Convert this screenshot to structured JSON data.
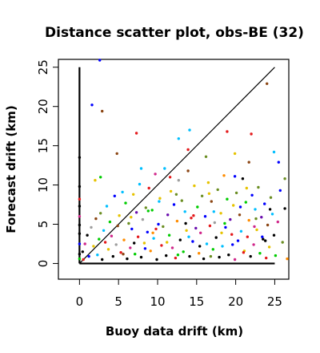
{
  "chart_data": {
    "type": "scatter",
    "title": "Distance scatter plot, obs-BE (32)",
    "xlabel": "Buoy data drift (km)",
    "ylabel": "Forecast drift (km)",
    "xlim": [
      -2.7,
      26.8
    ],
    "ylim": [
      -2.0,
      26.0
    ],
    "x_ticks": [
      0,
      5,
      10,
      15,
      20,
      25
    ],
    "y_ticks": [
      0,
      5,
      10,
      15,
      20,
      25
    ],
    "x_tick_labels": [
      "0",
      "5",
      "10",
      "15",
      "20",
      "25"
    ],
    "y_tick_labels": [
      "0",
      "5",
      "10",
      "15",
      "20",
      "25"
    ],
    "grid": false,
    "legend": "none",
    "reference_lines": [
      {
        "kind": "identity",
        "x": [
          0,
          25
        ],
        "y": [
          0,
          25
        ]
      },
      {
        "kind": "vertical-axis",
        "x": [
          0,
          0
        ],
        "y": [
          0,
          25
        ]
      },
      {
        "kind": "horizontal-axis",
        "x": [
          0,
          25
        ],
        "y": [
          0,
          0
        ]
      }
    ],
    "palette": [
      "#000000",
      "#e41a1c",
      "#00cc00",
      "#0000ff",
      "#00bfff",
      "#d0268a",
      "#e6c300",
      "#9e9e9e",
      "#8b4513",
      "#6b8e23",
      "#ff8c00",
      "#6a0dad"
    ],
    "points": [
      [
        1.6,
        20.2,
        3
      ],
      [
        2.9,
        19.4,
        8
      ],
      [
        7.3,
        16.6,
        1
      ],
      [
        12.7,
        15.9,
        4
      ],
      [
        14.1,
        17.0,
        4
      ],
      [
        13.9,
        14.5,
        1
      ],
      [
        7.9,
        12.1,
        4
      ],
      [
        2.0,
        10.6,
        6
      ],
      [
        2.7,
        11.0,
        2
      ],
      [
        4.8,
        14.0,
        8
      ],
      [
        16.2,
        13.6,
        9
      ],
      [
        18.9,
        16.8,
        1
      ],
      [
        19.9,
        11.1,
        3
      ],
      [
        19.9,
        14.0,
        6
      ],
      [
        22.0,
        16.5,
        1
      ],
      [
        24.0,
        22.9,
        8
      ],
      [
        24.9,
        14.2,
        4
      ],
      [
        25.5,
        12.9,
        3
      ],
      [
        26.3,
        10.8,
        9
      ],
      [
        21.7,
        12.9,
        8
      ],
      [
        2.6,
        25.9,
        3
      ],
      [
        0.0,
        13.5,
        0
      ],
      [
        0.0,
        9.8,
        0
      ],
      [
        0.0,
        8.2,
        1
      ],
      [
        0.0,
        7.3,
        0
      ],
      [
        0.0,
        6.0,
        5
      ],
      [
        0.0,
        4.9,
        0
      ],
      [
        0.0,
        3.8,
        0
      ],
      [
        0.0,
        2.5,
        3
      ],
      [
        0.0,
        1.2,
        0
      ],
      [
        0.0,
        0.6,
        2
      ],
      [
        0.4,
        1.5,
        0
      ],
      [
        0.5,
        0.5,
        1
      ],
      [
        0.7,
        2.5,
        5
      ],
      [
        1.0,
        3.6,
        0
      ],
      [
        1.2,
        0.9,
        3
      ],
      [
        1.5,
        4.6,
        7
      ],
      [
        1.8,
        2.2,
        6
      ],
      [
        2.1,
        5.7,
        8
      ],
      [
        2.3,
        1.1,
        4
      ],
      [
        2.5,
        3.1,
        2
      ],
      [
        2.7,
        6.4,
        9
      ],
      [
        2.9,
        0.5,
        0
      ],
      [
        3.1,
        4.2,
        4
      ],
      [
        3.3,
        2.7,
        1
      ],
      [
        3.5,
        7.3,
        4
      ],
      [
        3.7,
        1.8,
        6
      ],
      [
        3.9,
        5.3,
        2
      ],
      [
        4.1,
        3.5,
        5
      ],
      [
        4.3,
        0.9,
        0
      ],
      [
        4.5,
        8.6,
        3
      ],
      [
        4.7,
        2.4,
        7
      ],
      [
        4.9,
        4.8,
        8
      ],
      [
        5.1,
        6.1,
        6
      ],
      [
        5.3,
        1.4,
        1
      ],
      [
        5.5,
        9.1,
        4
      ],
      [
        5.7,
        3.0,
        10
      ],
      [
        5.9,
        7.7,
        2
      ],
      [
        6.1,
        0.6,
        0
      ],
      [
        6.3,
        5.1,
        9
      ],
      [
        6.5,
        2.0,
        5
      ],
      [
        6.7,
        4.4,
        3
      ],
      [
        6.9,
        8.8,
        6
      ],
      [
        7.1,
        1.2,
        2
      ],
      [
        7.3,
        6.5,
        11
      ],
      [
        7.5,
        3.4,
        1
      ],
      [
        7.7,
        10.1,
        4
      ],
      [
        7.9,
        0.8,
        0
      ],
      [
        8.1,
        5.6,
        7
      ],
      [
        8.3,
        2.6,
        6
      ],
      [
        8.5,
        7.1,
        9
      ],
      [
        8.7,
        4.0,
        3
      ],
      [
        8.9,
        9.6,
        1
      ],
      [
        9.1,
        1.6,
        10
      ],
      [
        9.3,
        6.8,
        2
      ],
      [
        9.5,
        3.2,
        4
      ],
      [
        9.7,
        11.4,
        5
      ],
      [
        9.9,
        0.5,
        0
      ],
      [
        10.1,
        5.0,
        3
      ],
      [
        10.3,
        8.3,
        6
      ],
      [
        10.5,
        2.3,
        1
      ],
      [
        10.7,
        4.7,
        9
      ],
      [
        10.9,
        12.1,
        4
      ],
      [
        11.1,
        1.0,
        0
      ],
      [
        11.3,
        6.2,
        11
      ],
      [
        11.5,
        3.6,
        2
      ],
      [
        11.7,
        9.2,
        6
      ],
      [
        11.9,
        2.0,
        5
      ],
      [
        12.1,
        7.5,
        3
      ],
      [
        12.3,
        0.7,
        1
      ],
      [
        12.5,
        5.4,
        10
      ],
      [
        12.7,
        10.6,
        7
      ],
      [
        12.9,
        3.0,
        0
      ],
      [
        13.1,
        8.0,
        9
      ],
      [
        13.3,
        1.5,
        2
      ],
      [
        13.5,
        6.6,
        4
      ],
      [
        13.7,
        4.2,
        6
      ],
      [
        13.9,
        11.8,
        8
      ],
      [
        14.1,
        0.9,
        0
      ],
      [
        14.3,
        5.8,
        1
      ],
      [
        14.5,
        2.8,
        3
      ],
      [
        14.7,
        9.9,
        6
      ],
      [
        14.9,
        4.5,
        11
      ],
      [
        15.1,
        7.2,
        2
      ],
      [
        15.3,
        1.3,
        10
      ],
      [
        15.5,
        3.9,
        5
      ],
      [
        15.7,
        8.6,
        9
      ],
      [
        15.9,
        0.6,
        0
      ],
      [
        16.1,
        6.0,
        3
      ],
      [
        16.3,
        2.5,
        4
      ],
      [
        16.5,
        10.3,
        6
      ],
      [
        16.7,
        4.8,
        1
      ],
      [
        16.9,
        7.9,
        8
      ],
      [
        17.1,
        1.8,
        2
      ],
      [
        17.3,
        5.2,
        7
      ],
      [
        17.5,
        3.3,
        0
      ],
      [
        17.7,
        9.4,
        9
      ],
      [
        17.9,
        0.8,
        0
      ],
      [
        18.1,
        6.4,
        6
      ],
      [
        18.3,
        2.2,
        4
      ],
      [
        18.5,
        11.2,
        10
      ],
      [
        18.7,
        4.6,
        3
      ],
      [
        18.9,
        8.2,
        2
      ],
      [
        19.1,
        1.1,
        0
      ],
      [
        19.3,
        5.6,
        11
      ],
      [
        19.5,
        3.7,
        1
      ],
      [
        19.7,
        7.4,
        6
      ],
      [
        19.9,
        0.5,
        5
      ],
      [
        20.1,
        9.0,
        9
      ],
      [
        20.3,
        2.9,
        3
      ],
      [
        20.5,
        6.2,
        8
      ],
      [
        20.7,
        4.1,
        4
      ],
      [
        20.9,
        10.8,
        0
      ],
      [
        21.1,
        1.6,
        6
      ],
      [
        21.3,
        7.8,
        2
      ],
      [
        21.5,
        3.4,
        1
      ],
      [
        21.7,
        5.5,
        10
      ],
      [
        21.9,
        0.9,
        0
      ],
      [
        22.1,
        8.7,
        3
      ],
      [
        22.3,
        2.4,
        5
      ],
      [
        22.5,
        6.9,
        4
      ],
      [
        22.7,
        4.3,
        6
      ],
      [
        22.9,
        9.7,
        9
      ],
      [
        23.1,
        1.3,
        2
      ],
      [
        23.3,
        5.9,
        11
      ],
      [
        23.5,
        3.1,
        0
      ],
      [
        23.7,
        7.6,
        3
      ],
      [
        23.9,
        0.7,
        1
      ],
      [
        24.1,
        4.9,
        8
      ],
      [
        24.3,
        2.1,
        6
      ],
      [
        24.5,
        8.4,
        9
      ],
      [
        24.7,
        6.3,
        4
      ],
      [
        24.9,
        3.6,
        0
      ],
      [
        25.1,
        1.0,
        2
      ],
      [
        25.4,
        5.3,
        5
      ],
      [
        25.7,
        9.3,
        3
      ],
      [
        26.0,
        2.7,
        9
      ],
      [
        26.3,
        7.0,
        0
      ],
      [
        26.6,
        0.6,
        10
      ],
      [
        5.6,
        1.2,
        8
      ],
      [
        7.0,
        2.6,
        0
      ],
      [
        8.4,
        1.9,
        3
      ],
      [
        9.8,
        4.4,
        1
      ],
      [
        11.2,
        2.7,
        6
      ],
      [
        12.6,
        1.1,
        2
      ],
      [
        14.0,
        3.4,
        4
      ],
      [
        15.4,
        2.2,
        0
      ],
      [
        16.8,
        0.9,
        9
      ],
      [
        18.2,
        3.9,
        6
      ],
      [
        19.6,
        2.4,
        3
      ],
      [
        21.0,
        1.4,
        1
      ],
      [
        22.4,
        4.7,
        5
      ],
      [
        23.8,
        2.9,
        0
      ],
      [
        6.6,
        5.9,
        6
      ],
      [
        8.8,
        6.7,
        2
      ],
      [
        10.2,
        7.9,
        4
      ],
      [
        12.4,
        8.8,
        9
      ],
      [
        14.6,
        6.1,
        1
      ],
      [
        16.6,
        8.9,
        6
      ],
      [
        18.6,
        5.1,
        2
      ],
      [
        20.6,
        7.2,
        3
      ],
      [
        22.6,
        5.7,
        9
      ],
      [
        24.4,
        6.9,
        0
      ],
      [
        9.4,
        3.9,
        10
      ],
      [
        13.6,
        5.1,
        0
      ],
      [
        17.2,
        6.6,
        4
      ],
      [
        21.4,
        9.6,
        6
      ],
      [
        23.4,
        3.4,
        3
      ],
      [
        11.6,
        11.0,
        1
      ]
    ]
  }
}
